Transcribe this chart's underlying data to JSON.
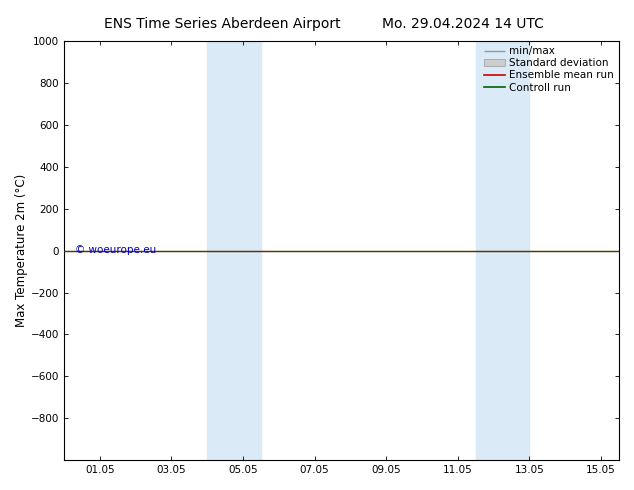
{
  "title_left": "ENS Time Series Aberdeen Airport",
  "title_right": "Mo. 29.04.2024 14 UTC",
  "ylabel": "Max Temperature 2m (°C)",
  "ylim_top": -1000,
  "ylim_bottom": 1000,
  "yticks": [
    -800,
    -600,
    -400,
    -200,
    0,
    200,
    400,
    600,
    800,
    1000
  ],
  "x_tick_labels": [
    "01.05",
    "03.05",
    "05.05",
    "07.05",
    "09.05",
    "11.05",
    "13.05",
    "15.05"
  ],
  "x_tick_positions": [
    1,
    3,
    5,
    7,
    9,
    11,
    13,
    15
  ],
  "xlim": [
    0,
    15.5
  ],
  "blue_bands": [
    {
      "start": 4.0,
      "end": 5.0
    },
    {
      "start": 5.0,
      "end": 5.5
    },
    {
      "start": 11.5,
      "end": 12.5
    },
    {
      "start": 12.5,
      "end": 13.0
    }
  ],
  "blue_band_pairs": [
    {
      "start": 4.0,
      "end": 5.5
    },
    {
      "start": 11.5,
      "end": 13.0
    }
  ],
  "blue_band_color": "#daeaf7",
  "control_run_color": "#006400",
  "ensemble_mean_color": "#cc0000",
  "watermark_text": "© woeurope.eu",
  "watermark_color": "#0000bb",
  "background_color": "#ffffff",
  "legend_entries": [
    "min/max",
    "Standard deviation",
    "Ensemble mean run",
    "Controll run"
  ],
  "legend_colors_line": [
    "#999999",
    "#cccccc",
    "#cc0000",
    "#006400"
  ],
  "title_fontsize": 10,
  "tick_fontsize": 7.5,
  "ylabel_fontsize": 8.5,
  "legend_fontsize": 7.5
}
